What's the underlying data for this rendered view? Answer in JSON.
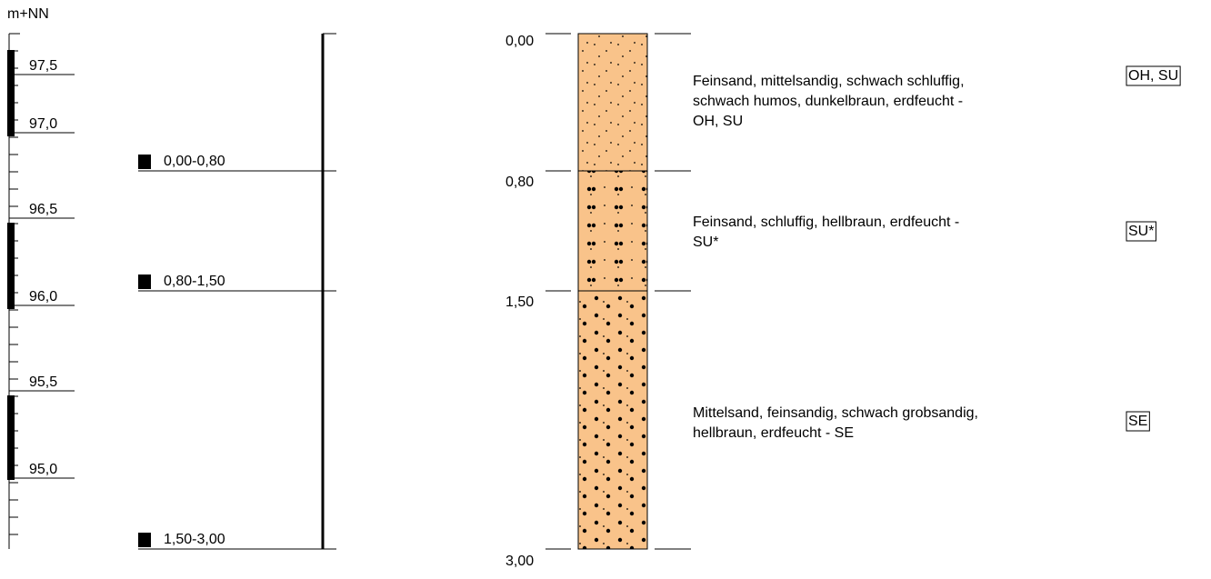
{
  "header": {
    "unit": "m+NN"
  },
  "scale": {
    "labels": [
      "97,5",
      "97,0",
      "96,5",
      "96,0",
      "95,5",
      "95,0"
    ]
  },
  "samples": [
    {
      "label": "0,00-0,80"
    },
    {
      "label": "0,80-1,50"
    },
    {
      "label": "1,50-3,00"
    }
  ],
  "layers": [
    {
      "top": "0,00",
      "description": [
        "Feinsand, mittelsandig, schwach schluffig,",
        "schwach humos, dunkelbraun, erdfeucht -",
        "OH, SU"
      ],
      "code": "OH, SU"
    },
    {
      "top": "0,80",
      "description": [
        "Feinsand, schluffig, hellbraun, erdfeucht -",
        "SU*"
      ],
      "code": "SU*"
    },
    {
      "top": "1,50",
      "description": [
        "Mittelsand, feinsandig, schwach grobsandig,",
        "hellbraun, erdfeucht - SE"
      ],
      "code": "SE"
    }
  ],
  "end_depth": "3,00"
}
